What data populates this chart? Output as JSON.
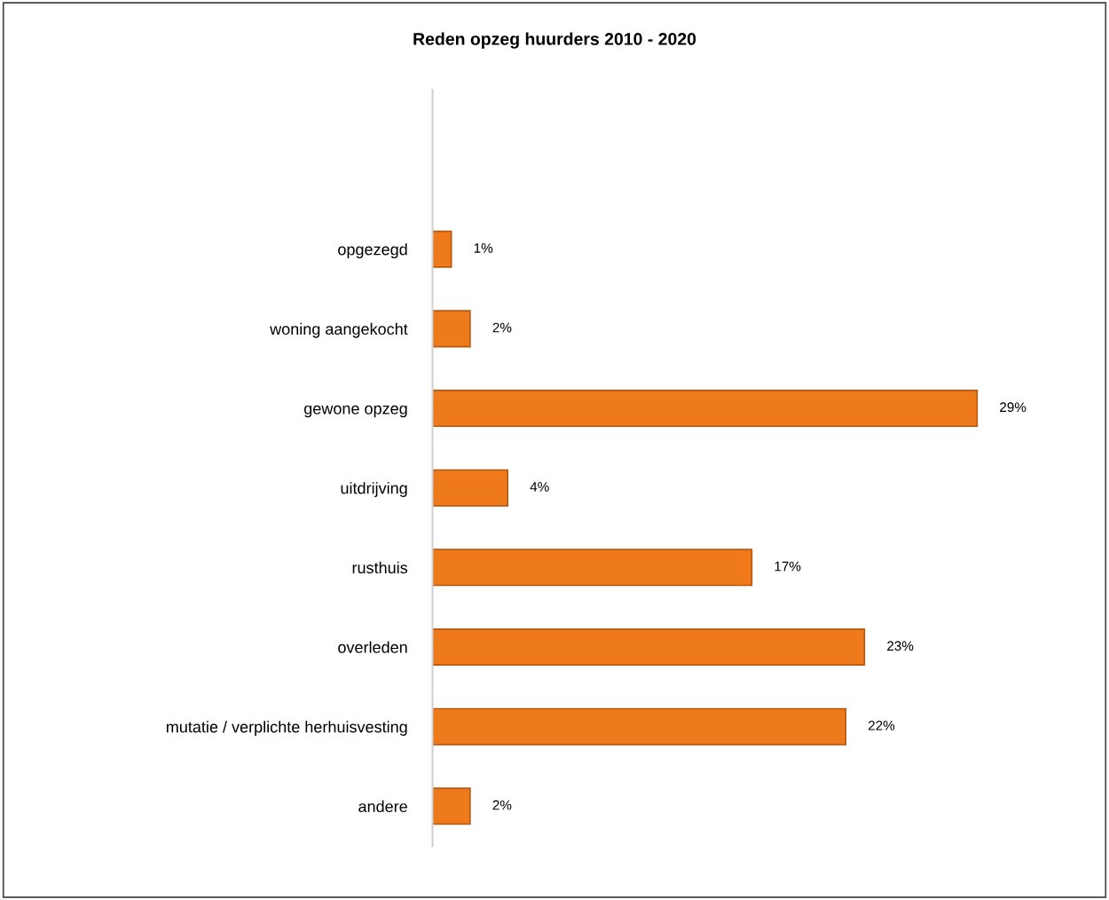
{
  "chart_data": {
    "type": "bar",
    "orientation": "horizontal",
    "title": "Reden opzeg huurders 2010 - 2020",
    "categories": [
      "opgezegd",
      "woning aangekocht",
      "gewone opzeg",
      "uitdrijving",
      "rusthuis",
      "overleden",
      "mutatie / verplichte herhuisvesting",
      "andere"
    ],
    "values": [
      1,
      2,
      29,
      4,
      17,
      23,
      22,
      2
    ],
    "value_labels": [
      "1%",
      "2%",
      "29%",
      "4%",
      "17%",
      "23%",
      "22%",
      "2%"
    ],
    "color": "#ee7a1c",
    "grid": false,
    "legend": false
  }
}
